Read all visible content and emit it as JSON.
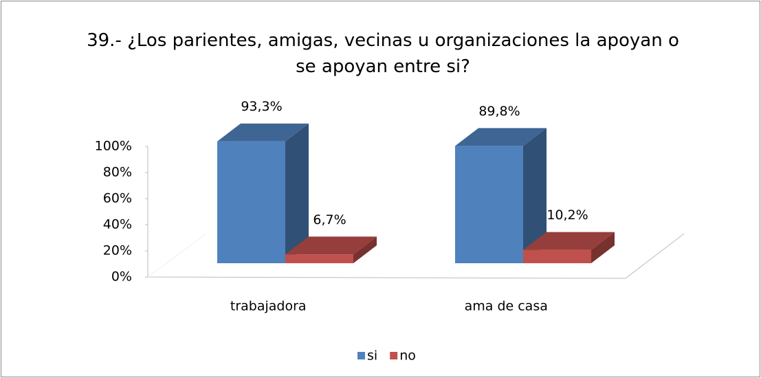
{
  "chart_data": {
    "type": "bar3d",
    "title": "39.- ¿Los parientes, amigas, vecinas u organizaciones la apoyan o se apoyan entre si?",
    "categories": [
      "trabajadora",
      "ama de casa"
    ],
    "series": [
      {
        "name": "si",
        "color": "#4f81bd",
        "values": [
          93.3,
          89.8
        ],
        "value_labels": [
          "93,3%",
          "89,8%"
        ]
      },
      {
        "name": "no",
        "color": "#c0504d",
        "values": [
          6.7,
          10.2
        ],
        "value_labels": [
          "6,7%",
          "10,2%"
        ]
      }
    ],
    "ylim": [
      0,
      100
    ],
    "yticks": [
      {
        "value": 0,
        "label": "0%"
      },
      {
        "value": 20,
        "label": "20%"
      },
      {
        "value": 40,
        "label": "40%"
      },
      {
        "value": 60,
        "label": "60%"
      },
      {
        "value": 80,
        "label": "80%"
      },
      {
        "value": 100,
        "label": "100%"
      }
    ],
    "legend": "bottom"
  }
}
